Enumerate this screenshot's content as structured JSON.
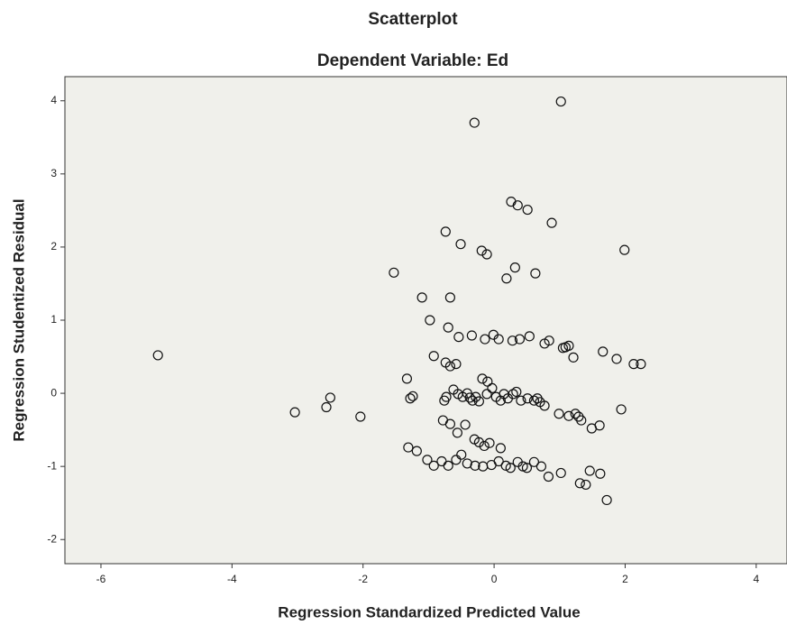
{
  "chart_data": {
    "type": "scatter",
    "title": "Scatterplot",
    "subtitle": "Dependent Variable: Ed",
    "x_label": "Regression Standardized Predicted Value",
    "y_label": "Regression Studentized Residual",
    "xlim": [
      -6.55,
      4.47
    ],
    "ylim": [
      -2.33,
      4.33
    ],
    "xticks": [
      -6,
      -4,
      -2,
      0,
      2,
      4
    ],
    "yticks": [
      -2,
      -1,
      0,
      1,
      2,
      3,
      4
    ],
    "color": "#111111",
    "background": "#f0f0eb",
    "x": [
      -0.3,
      1.02,
      0.26,
      0.36,
      0.51,
      0.88,
      -0.74,
      -0.51,
      -0.19,
      -0.11,
      1.99,
      0.32,
      0.63,
      -1.53,
      0.19,
      -1.1,
      -0.67,
      -0.98,
      -0.7,
      -0.54,
      -0.34,
      -0.14,
      -0.01,
      0.07,
      0.28,
      0.39,
      0.54,
      0.77,
      0.84,
      1.05,
      1.09,
      1.14,
      1.21,
      1.66,
      1.87,
      2.13,
      2.24,
      -5.13,
      -0.92,
      -0.74,
      -0.67,
      -0.58,
      -0.18,
      -0.1,
      -1.33,
      -1.28,
      -1.24,
      -2.5,
      -2.56,
      -3.04,
      -2.04,
      -0.76,
      -0.73,
      -0.62,
      -0.55,
      -0.48,
      -0.41,
      -0.37,
      -0.33,
      -0.28,
      -0.23,
      -0.11,
      -0.03,
      0.03,
      0.1,
      0.15,
      0.21,
      0.29,
      0.34,
      0.41,
      0.51,
      0.61,
      0.66,
      0.7,
      0.77,
      0.99,
      1.14,
      1.24,
      1.29,
      1.33,
      1.49,
      1.61,
      1.94,
      -0.78,
      -0.67,
      -0.56,
      -0.44,
      -0.3,
      -0.23,
      -0.15,
      -0.07,
      0.1,
      -1.31,
      -1.18,
      -1.02,
      -0.92,
      -0.8,
      -0.7,
      -0.58,
      -0.5,
      -0.41,
      -0.29,
      -0.17,
      -0.04,
      0.07,
      0.18,
      0.25,
      0.36,
      0.44,
      0.5,
      0.61,
      0.72,
      0.83,
      1.02,
      1.31,
      1.4,
      1.46,
      1.62,
      1.72
    ],
    "y": [
      3.7,
      3.99,
      2.62,
      2.57,
      2.51,
      2.33,
      2.21,
      2.04,
      1.95,
      1.9,
      1.96,
      1.72,
      1.64,
      1.65,
      1.57,
      1.31,
      1.31,
      1.0,
      0.9,
      0.77,
      0.79,
      0.74,
      0.8,
      0.74,
      0.72,
      0.74,
      0.78,
      0.68,
      0.72,
      0.62,
      0.63,
      0.65,
      0.49,
      0.57,
      0.47,
      0.4,
      0.4,
      0.52,
      0.51,
      0.42,
      0.37,
      0.4,
      0.2,
      0.16,
      0.2,
      -0.07,
      -0.04,
      -0.06,
      -0.19,
      -0.26,
      -0.32,
      -0.1,
      -0.05,
      0.05,
      -0.01,
      -0.05,
      0.0,
      -0.06,
      -0.1,
      -0.05,
      -0.11,
      -0.01,
      0.07,
      -0.05,
      -0.1,
      -0.01,
      -0.07,
      -0.01,
      0.02,
      -0.1,
      -0.07,
      -0.1,
      -0.07,
      -0.12,
      -0.17,
      -0.28,
      -0.31,
      -0.28,
      -0.32,
      -0.37,
      -0.48,
      -0.44,
      -0.22,
      -0.37,
      -0.42,
      -0.54,
      -0.43,
      -0.63,
      -0.67,
      -0.72,
      -0.68,
      -0.75,
      -0.74,
      -0.79,
      -0.91,
      -0.99,
      -0.93,
      -0.99,
      -0.91,
      -0.84,
      -0.96,
      -0.99,
      -1.0,
      -0.98,
      -0.93,
      -0.99,
      -1.02,
      -0.94,
      -1.0,
      -1.02,
      -0.94,
      -1.0,
      -1.14,
      -1.09,
      -1.23,
      -1.25,
      -1.06,
      -1.1,
      -1.46
    ]
  }
}
